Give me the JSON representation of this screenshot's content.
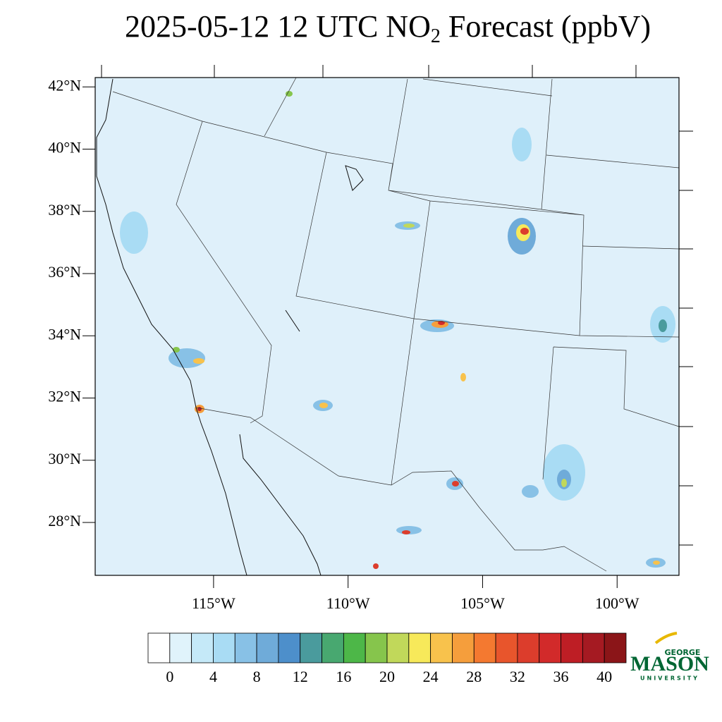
{
  "map": {
    "title": {
      "main": "2025-05-12 12 UTC NO",
      "subscript": "2",
      "rest": " Forecast (ppbV)"
    },
    "xlim": [
      -119.4,
      -97.7
    ],
    "ylim": [
      26.3,
      42.3
    ],
    "yticks": [
      {
        "value": 28,
        "label": "28°N"
      },
      {
        "value": 30,
        "label": "30°N"
      },
      {
        "value": 32,
        "label": "32°N"
      },
      {
        "value": 34,
        "label": "34°N"
      },
      {
        "value": 36,
        "label": "36°N"
      },
      {
        "value": 38,
        "label": "38°N"
      },
      {
        "value": 40,
        "label": "40°N"
      },
      {
        "value": 42,
        "label": "42°N"
      }
    ],
    "xticks": [
      {
        "value": -115,
        "label": "115°W"
      },
      {
        "value": -110,
        "label": "110°W"
      },
      {
        "value": -105,
        "label": "105°W"
      },
      {
        "value": -100,
        "label": "100°W"
      }
    ],
    "colorbar": {
      "ticks": [
        0,
        4,
        8,
        12,
        16,
        20,
        24,
        28,
        32,
        36,
        40
      ],
      "colors": [
        "#ffffff",
        "#e0f3fb",
        "#c5e9f8",
        "#a9dcf4",
        "#88c1e6",
        "#6fabd9",
        "#4d8fcb",
        "#4a9b9d",
        "#48a870",
        "#4db748",
        "#86c54c",
        "#c1d85a",
        "#f7e95a",
        "#f8c24c",
        "#f59e3c",
        "#f47930",
        "#e8552c",
        "#dc3d2c",
        "#d22a2a",
        "#be1e25",
        "#a51a22",
        "#8b1518"
      ]
    },
    "logo": {
      "top": "GEORGE",
      "main": "MASON",
      "bottom": "UNIVERSITY"
    }
  }
}
